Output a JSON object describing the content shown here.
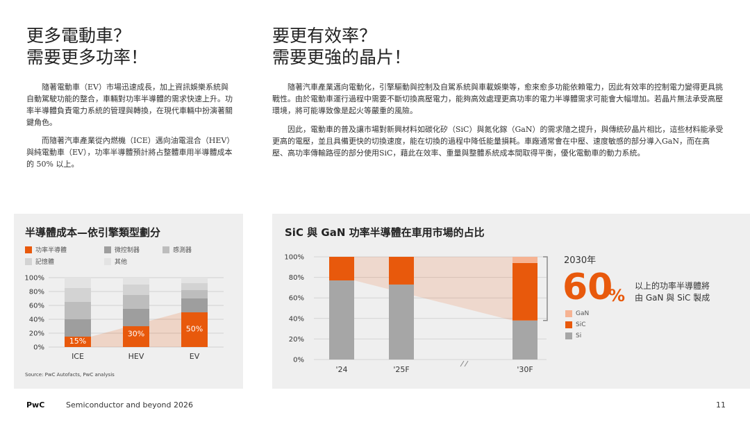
{
  "left": {
    "heading": "更多電動車？\n需要更多功率！",
    "paragraphs": [
      "隨著電動車（EV）市場迅速成長，加上資訊娛樂系統與自動駕駛功能的整合，車輛對功率半導體的需求快速上升。功率半導體負責電力系統的管理與轉換，在現代車輛中扮演著關鍵角色。",
      "而隨著汽車產業從內燃機（ICE）邁向油電混合（HEV）與純電動車（EV），功率半導體預計將占整體車用半導體成本的 50% 以上。"
    ]
  },
  "right": {
    "heading": "要更有效率？\n需要更強的晶片！",
    "paragraphs": [
      "隨著汽車產業邁向電動化，引擎驅動與控制及自駕系統與車載娛樂等，愈來愈多功能依賴電力，因此有效率的控制電力變得更具挑戰性。由於電動車運行過程中需要不斷切換高壓電力，能夠高效處理更高功率的電力半導體需求可能會大幅增加。若晶片無法承受高壓環境，將可能導致像是起火等嚴重的風險。",
      "因此，電動車的普及讓市場對新興材料如碳化矽（SiC）與氮化鎵（GaN）的需求隨之提升，與傳統矽晶片相比，這些材料能承受更高的電壓，並且具備更快的切換速度，能在切換的過程中降低能量損耗。車廠通常會在中壓、速度敏感的部分導入GaN，而在高壓、高功率傳輸路徑的部分使用SiC，藉此在效率、重量與整體系統成本間取得平衡，優化電動車的動力系統。"
    ]
  },
  "chart_data": [
    {
      "type": "bar",
      "stacked": true,
      "title": "半導體成本—依引擎類型劃分",
      "categories": [
        "ICE",
        "HEV",
        "EV"
      ],
      "series": [
        {
          "name": "功率半導體",
          "values": [
            15,
            30,
            50
          ],
          "color": "#e8590c"
        },
        {
          "name": "微控制器",
          "values": [
            25,
            25,
            20
          ],
          "color": "#9e9e9e"
        },
        {
          "name": "感測器",
          "values": [
            25,
            20,
            12
          ],
          "color": "#bdbdbd"
        },
        {
          "name": "記憶體",
          "values": [
            20,
            15,
            10
          ],
          "color": "#d3d3d3"
        },
        {
          "name": "其他",
          "values": [
            15,
            10,
            8
          ],
          "color": "#e3e3e3"
        }
      ],
      "value_labels": [
        "15%",
        "30%",
        "50%"
      ],
      "y_ticks": [
        "0%",
        "20%",
        "40%",
        "60%",
        "80%",
        "100%"
      ],
      "ylim": [
        0,
        100
      ],
      "grid": true,
      "source": "Source: PwC Autofacts, PwC analysis"
    },
    {
      "type": "bar",
      "stacked": true,
      "title": "SiC 與 GaN 功率半導體在車用市場的占比",
      "categories": [
        "'24",
        "'25F",
        "'30F"
      ],
      "axis_break_between": [
        "'25F",
        "'30F"
      ],
      "series": [
        {
          "name": "Si",
          "values": [
            77,
            73,
            38
          ],
          "color": "#a6a6a6"
        },
        {
          "name": "SiC",
          "values": [
            23,
            27,
            56
          ],
          "color": "#e8590c"
        },
        {
          "name": "GaN",
          "values": [
            0,
            0,
            6
          ],
          "color": "#f6b393"
        }
      ],
      "y_ticks": [
        "0%",
        "20%",
        "40%",
        "60%",
        "80%",
        "100%"
      ],
      "ylim": [
        0,
        100
      ],
      "legend_order": [
        "GaN",
        "SiC",
        "Si"
      ],
      "callout": {
        "year": "2030年",
        "value": "60",
        "unit": "%",
        "description": "以上的功率半導體將\n由 GaN 與 SiC 製成"
      }
    }
  ],
  "footer": {
    "brand": "PwC",
    "text": "Semiconductor and beyond 2026",
    "page": "11"
  },
  "colors": {
    "accent": "#e8590c",
    "accent_light": "#f6b393",
    "panel_bg": "#efefef"
  }
}
